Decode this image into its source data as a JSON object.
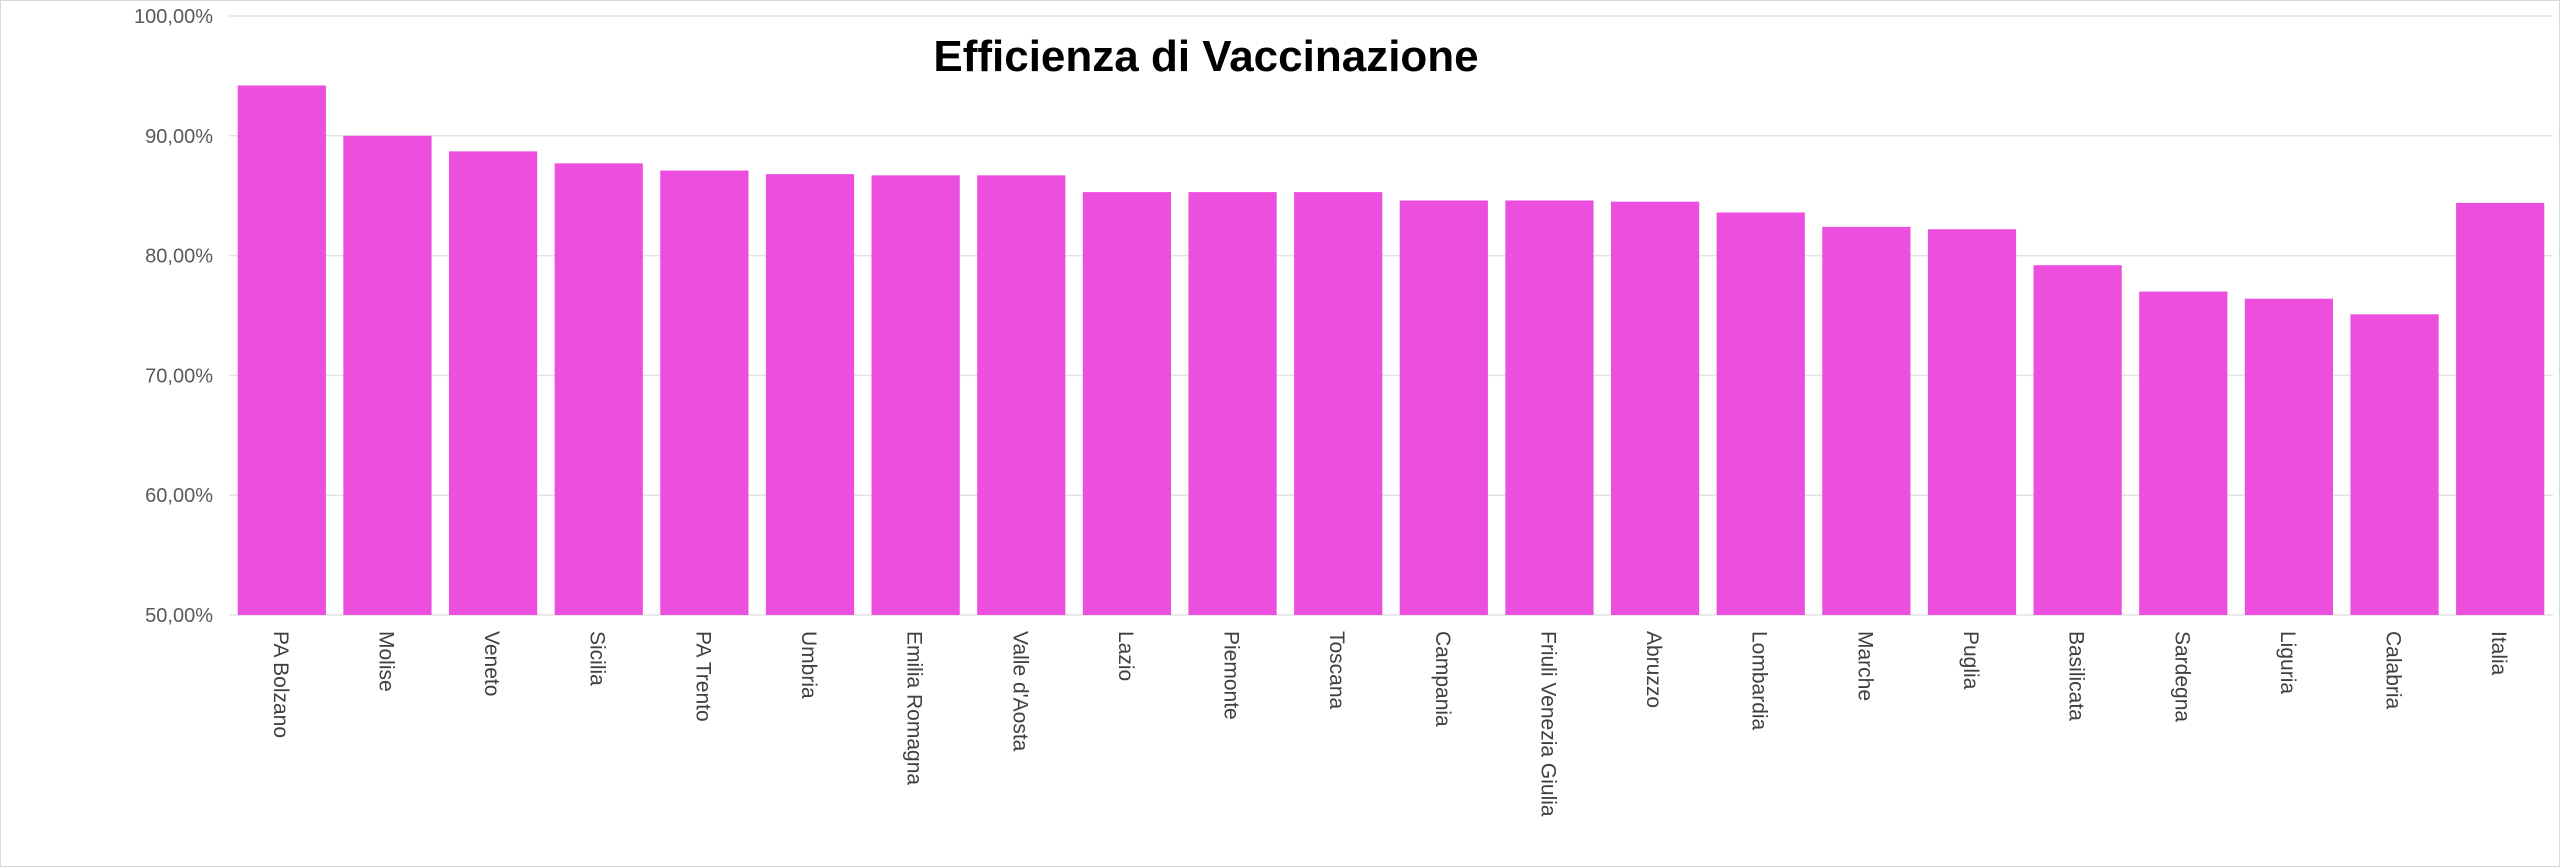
{
  "chart_data": {
    "type": "bar",
    "title": "Efficienza di Vaccinazione",
    "xlabel": "",
    "ylabel": "",
    "ylim": [
      0.5,
      1.0
    ],
    "y_ticks": [
      0.5,
      0.6,
      0.7,
      0.8,
      0.9,
      1.0
    ],
    "y_tick_labels": [
      "50,00%",
      "60,00%",
      "70,00%",
      "80,00%",
      "90,00%",
      "100,00%"
    ],
    "grid": true,
    "legend": "none",
    "bar_color": "#ec4fdd",
    "categories": [
      "PA Bolzano",
      "Molise",
      "Veneto",
      "Sicilia",
      "PA Trento",
      "Umbria",
      "Emilia Romagna",
      "Valle d'Aosta",
      "Lazio",
      "Piemonte",
      "Toscana",
      "Campania",
      "Friuli Venezia Giulia",
      "Abruzzo",
      "Lombardia",
      "Marche",
      "Puglia",
      "Basilicata",
      "Sardegna",
      "Liguria",
      "Calabria",
      "Italia"
    ],
    "values": [
      0.942,
      0.9,
      0.887,
      0.877,
      0.871,
      0.868,
      0.867,
      0.867,
      0.853,
      0.853,
      0.853,
      0.846,
      0.846,
      0.845,
      0.836,
      0.824,
      0.822,
      0.792,
      0.77,
      0.764,
      0.751,
      0.844
    ]
  }
}
